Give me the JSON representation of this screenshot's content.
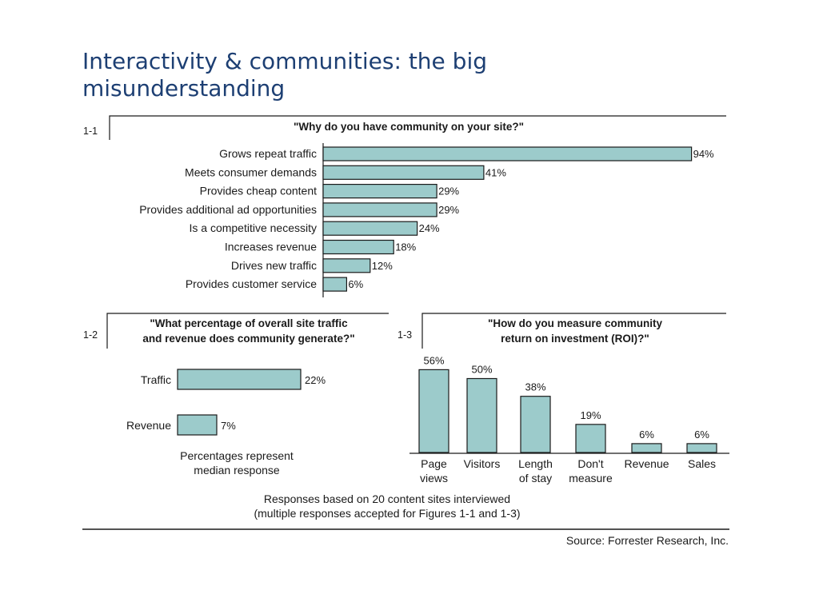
{
  "slide": {
    "title": "Interactivity & communities: the big misunderstanding"
  },
  "chart_data": [
    {
      "id": "1-1",
      "type": "bar",
      "orientation": "horizontal",
      "figure_label": "1-1",
      "title": "\"Why do you have community on your site?\"",
      "categories": [
        "Grows repeat traffic",
        "Meets consumer demands",
        "Provides cheap content",
        "Provides additional ad opportunities",
        "Is a competitive necessity",
        "Increases revenue",
        "Drives new traffic",
        "Provides customer service"
      ],
      "values": [
        94,
        41,
        29,
        29,
        24,
        18,
        12,
        6
      ],
      "value_labels": [
        "94%",
        "41%",
        "29%",
        "29%",
        "24%",
        "18%",
        "12%",
        "6%"
      ],
      "unit": "%",
      "ylim": [
        0,
        100
      ],
      "bar_color": "#9ccbcb"
    },
    {
      "id": "1-2",
      "type": "bar",
      "orientation": "horizontal",
      "figure_label": "1-2",
      "title_lines": [
        "\"What percentage of overall site traffic",
        "and revenue does community generate?\""
      ],
      "categories": [
        "Traffic",
        "Revenue"
      ],
      "values": [
        22,
        7
      ],
      "value_labels": [
        "22%",
        "7%"
      ],
      "unit": "%",
      "note_lines": [
        "Percentages represent",
        "median response"
      ],
      "bar_color": "#9ccbcb"
    },
    {
      "id": "1-3",
      "type": "bar",
      "orientation": "vertical",
      "figure_label": "1-3",
      "title_lines": [
        "\"How do you measure community",
        "return on investment (ROI)?\""
      ],
      "categories": [
        [
          "Page",
          "views"
        ],
        [
          "Visitors"
        ],
        [
          "Length",
          "of stay"
        ],
        [
          "Don't",
          "measure"
        ],
        [
          "Revenue"
        ],
        [
          "Sales"
        ]
      ],
      "values": [
        56,
        50,
        38,
        19,
        6,
        6
      ],
      "value_labels": [
        "56%",
        "50%",
        "38%",
        "19%",
        "6%",
        "6%"
      ],
      "unit": "%",
      "ylim": [
        0,
        100
      ],
      "bar_color": "#9ccbcb"
    }
  ],
  "footer": {
    "note_lines": [
      "Responses based on 20 content sites interviewed",
      "(multiple responses accepted for Figures 1-1 and 1-3)"
    ],
    "source": "Source: Forrester Research, Inc."
  }
}
